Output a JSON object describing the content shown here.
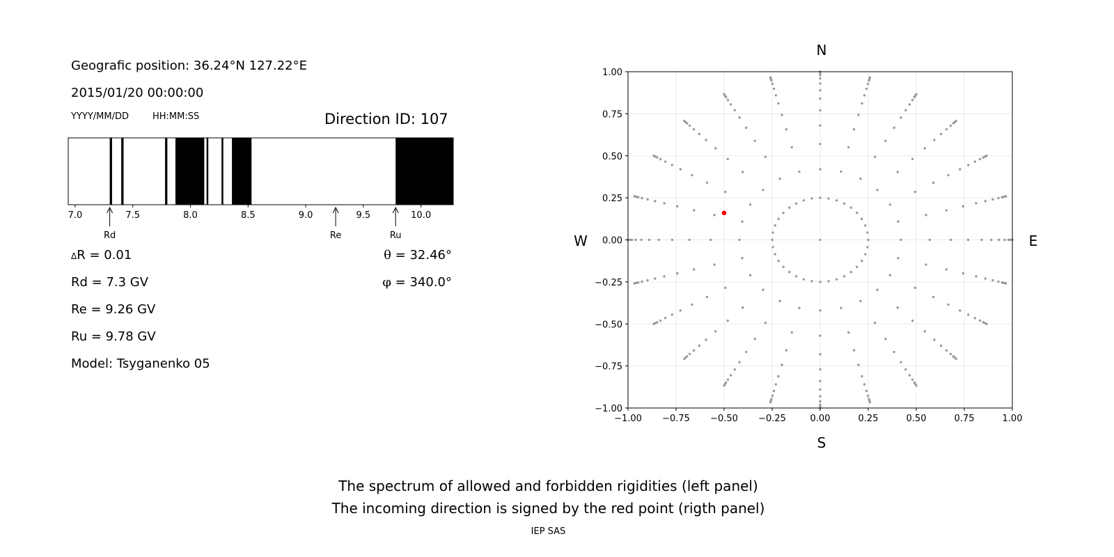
{
  "left_panel": {
    "geo_position": "Geografic position: 36.24°N 127.22°E",
    "datetime": "2015/01/20 00:00:00",
    "date_format": "YYYY/MM/DD",
    "time_format": "HH:MM:SS",
    "direction_id": "Direction ID: 107",
    "delta_r_symbol": "Δ",
    "delta_r_value": "R = 0.01",
    "rd_text": "Rd = 7.3 GV",
    "re_text": "Re = 9.26 GV",
    "ru_text": "Ru = 9.78 GV",
    "model_text": "Model: Tsyganenko 05",
    "theta_symbol": "θ",
    "theta_value": "= 32.46°",
    "phi_symbol": "φ",
    "phi_value": "= 340.0°"
  },
  "spectrum": {
    "type": "table",
    "x_range": [
      6.94,
      10.28
    ],
    "ticks": [
      "7.0",
      "7.5",
      "8.0",
      "8.5",
      "9.0",
      "9.5",
      "10.0"
    ],
    "tick_values": [
      7.0,
      7.5,
      8.0,
      8.5,
      9.0,
      9.5,
      10.0
    ],
    "forbidden_bands": [
      [
        7.3,
        7.32
      ],
      [
        7.4,
        7.42
      ],
      [
        7.78,
        7.8
      ],
      [
        7.87,
        8.12
      ],
      [
        8.14,
        8.15
      ],
      [
        8.27,
        8.28
      ],
      [
        8.36,
        8.53
      ],
      [
        9.78,
        10.28
      ]
    ],
    "markers": [
      {
        "label": "Rd",
        "value": 7.3
      },
      {
        "label": "Re",
        "value": 9.26
      },
      {
        "label": "Ru",
        "value": 9.78
      }
    ],
    "colors": {
      "forbidden": "#000000",
      "allowed": "#ffffff"
    }
  },
  "chart_data": {
    "type": "scatter",
    "xlim": [
      -1.0,
      1.0
    ],
    "ylim": [
      -1.0,
      1.0
    ],
    "xticks": [
      "−1.00",
      "−0.75",
      "−0.50",
      "−0.25",
      "0.00",
      "0.25",
      "0.50",
      "0.75",
      "1.00"
    ],
    "yticks": [
      "−1.00",
      "−0.75",
      "−0.50",
      "−0.25",
      "0.00",
      "0.25",
      "0.50",
      "0.75",
      "1.00"
    ],
    "tick_values": [
      -1.0,
      -0.75,
      -0.5,
      -0.25,
      0.0,
      0.25,
      0.5,
      0.75,
      1.0
    ],
    "grid": true,
    "grid_description": "polar direction grid: zenith angles 0–90° (radius sin θ-like) and azimuths every 15°",
    "zenith_radii": [
      0.0,
      0.25,
      0.42,
      0.57,
      0.68,
      0.77,
      0.84,
      0.89,
      0.93,
      0.96,
      0.98,
      0.99,
      1.0
    ],
    "spoke_azimuths_deg": [
      0,
      15,
      30,
      45,
      60,
      75,
      90,
      105,
      120,
      135,
      150,
      165,
      180,
      195,
      210,
      225,
      240,
      255,
      270,
      285,
      300,
      315,
      330,
      345
    ],
    "highlight_point": {
      "x": -0.5,
      "y": 0.16
    },
    "colors": {
      "grid_point": "#999999",
      "highlight": "#ff0000"
    },
    "directions": {
      "north": "N",
      "south": "S",
      "west": "W",
      "east": "E"
    }
  },
  "footer": {
    "line1": "The spectrum of allowed and forbidden rigidities (left panel)",
    "line2": "The incoming direction is signed by the red point (rigth panel)",
    "credit": "IEP SAS"
  }
}
